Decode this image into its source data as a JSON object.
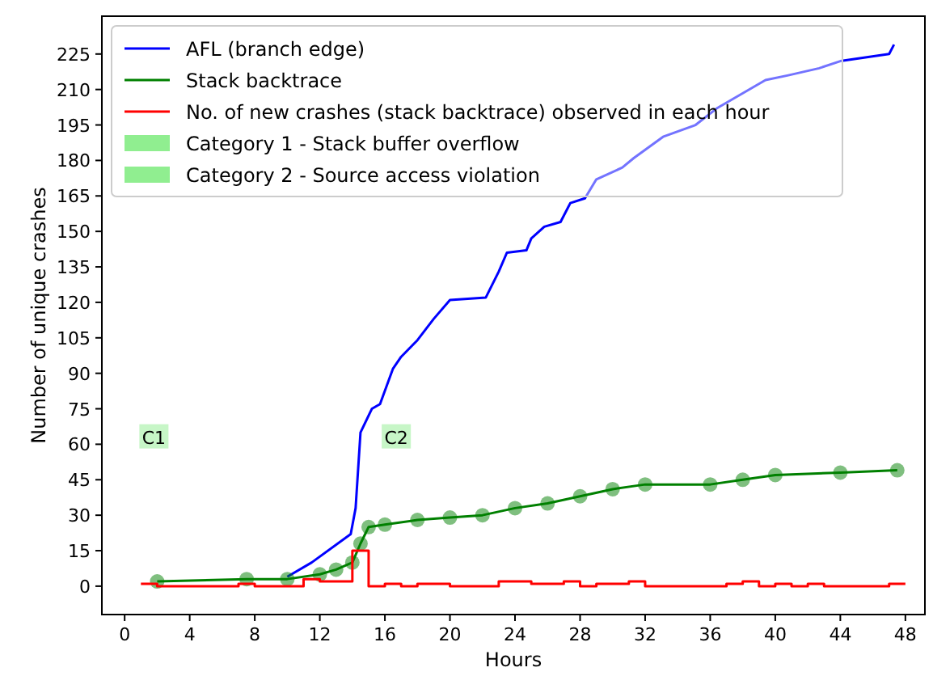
{
  "chart_data": {
    "type": "line",
    "xlabel": "Hours",
    "ylabel": "Number of unique crashes",
    "xlim": [
      -1.4,
      49.2
    ],
    "ylim": [
      -12,
      241
    ],
    "xticks": [
      0,
      4,
      8,
      12,
      16,
      20,
      24,
      28,
      32,
      36,
      40,
      44,
      48
    ],
    "yticks": [
      0,
      15,
      30,
      45,
      60,
      75,
      90,
      105,
      120,
      135,
      150,
      165,
      180,
      195,
      210,
      225
    ],
    "legend": "top left",
    "grid": false,
    "annotations": [
      {
        "text": "C1",
        "x": 1.8,
        "y": 63
      },
      {
        "text": "C2",
        "x": 16.7,
        "y": 63
      }
    ],
    "series": [
      {
        "name": "AFL (branch edge)",
        "color": "#0000ff",
        "x": [
          10,
          11.5,
          13.9,
          14.2,
          14.5,
          15.2,
          15.7,
          16.5,
          17,
          18,
          19,
          20,
          22.2,
          23,
          23.5,
          24.7,
          25,
          25.8,
          26.8,
          27.4,
          28.3,
          29,
          30.6,
          31.3,
          33.1,
          35.1,
          36.4,
          39.4,
          40.8,
          42.7,
          44,
          47,
          47.3
        ],
        "values": [
          4,
          10,
          22,
          33,
          65,
          75,
          77,
          92,
          97,
          104,
          113,
          121,
          122,
          133,
          141,
          142,
          147,
          152,
          154,
          162,
          164,
          172,
          177,
          181,
          190,
          195,
          202,
          214,
          216,
          219,
          222,
          225,
          229
        ]
      },
      {
        "name": "Stack backtrace",
        "color": "#008000",
        "marker": "circle",
        "x": [
          2,
          7.5,
          10,
          12,
          13,
          14,
          14.5,
          15,
          16,
          18,
          20,
          22,
          24,
          26,
          28,
          30,
          32,
          36,
          38,
          40,
          44,
          47.5
        ],
        "values": [
          2,
          3,
          3,
          5,
          7,
          10,
          18,
          25,
          26,
          28,
          29,
          30,
          33,
          35,
          38,
          41,
          43,
          43,
          45,
          47,
          48,
          49
        ]
      },
      {
        "name": "No. of new crashes (stack backtrace) observed in each hour",
        "color": "#ff0000",
        "type": "step",
        "x": [
          1,
          2,
          7,
          8,
          11,
          12,
          14,
          15,
          16,
          17,
          18,
          20,
          23,
          25,
          27,
          28,
          29,
          31,
          32,
          37,
          38,
          39,
          40,
          41,
          42,
          43,
          47,
          48
        ],
        "values": [
          1,
          0,
          1,
          0,
          3,
          2,
          15,
          0,
          1,
          0,
          1,
          0,
          2,
          1,
          2,
          0,
          1,
          2,
          0,
          1,
          2,
          0,
          1,
          0,
          1,
          0,
          1,
          1
        ]
      },
      {
        "name": "Category 1 - Stack buffer overflow",
        "color": "#90ee90",
        "type": "area"
      },
      {
        "name": "Category 2 - Source access violation",
        "color": "#90ee90",
        "type": "area"
      }
    ]
  }
}
